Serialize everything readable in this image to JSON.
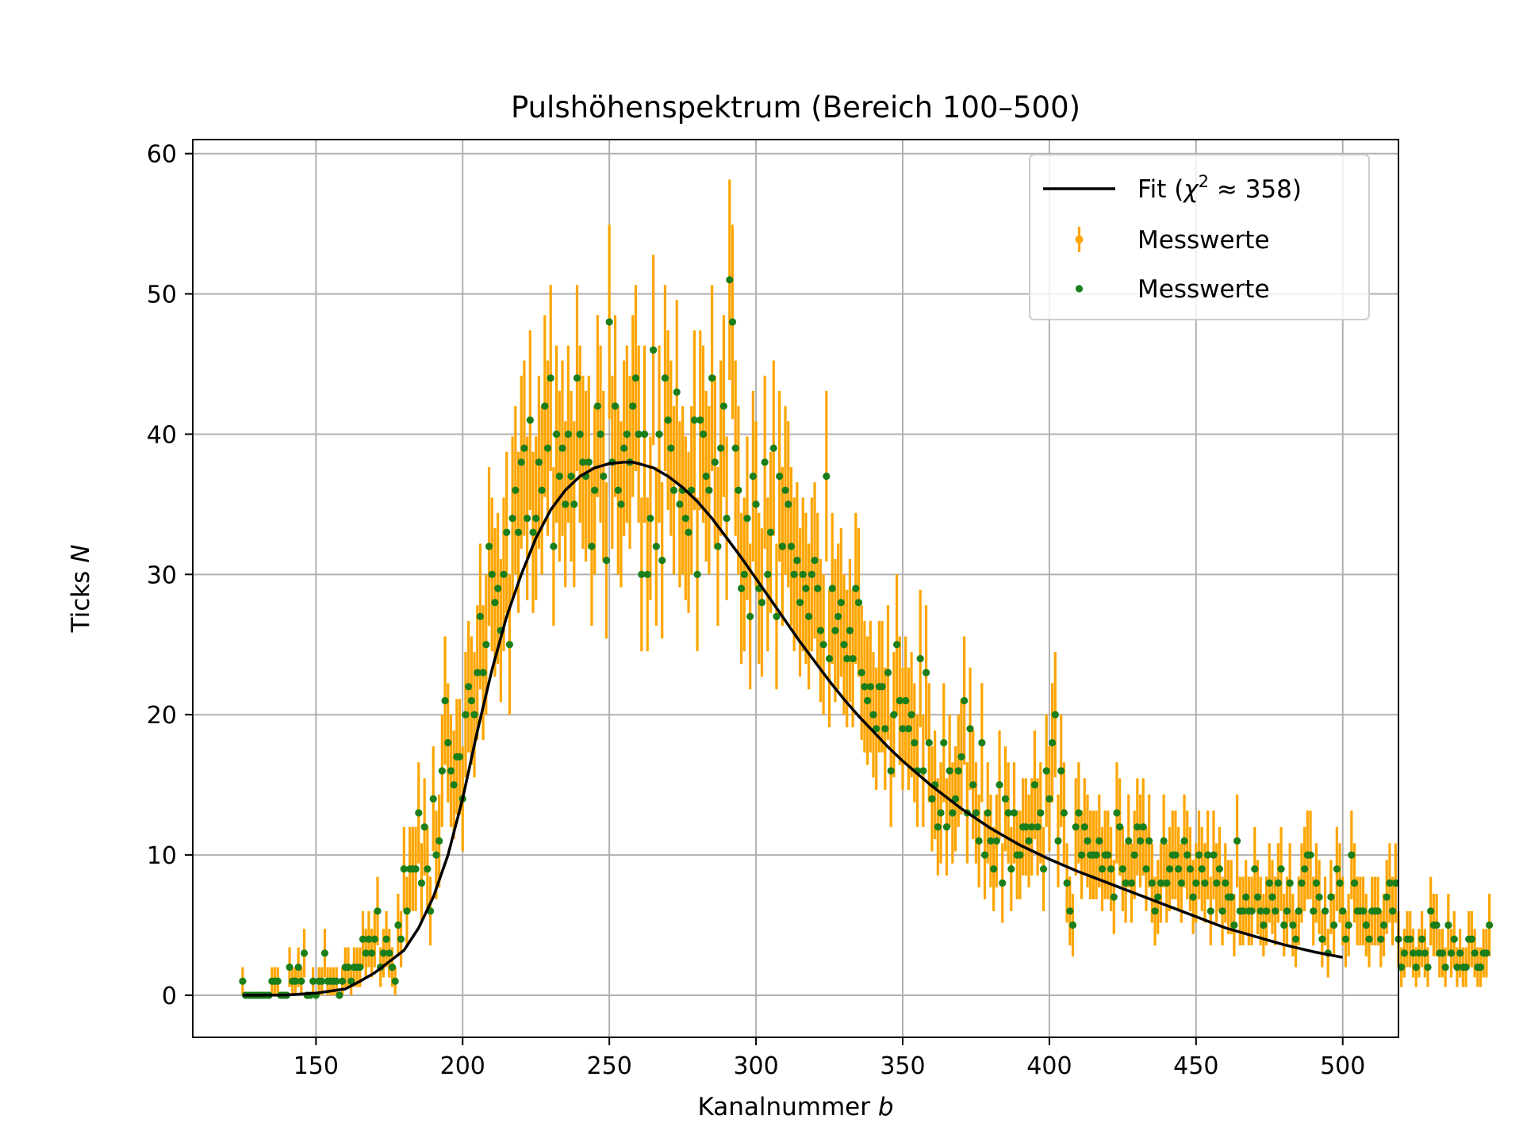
{
  "chart_data": {
    "type": "scatter",
    "title": "Pulshöhenspektrum (Bereich 100–500)",
    "xlabel": "Kanalnummer b",
    "ylabel": "Ticks N",
    "xlabel_parts": {
      "text": "Kanalnummer ",
      "var": "b"
    },
    "ylabel_parts": {
      "text": "Ticks ",
      "var": "N"
    },
    "xlim": [
      108,
      519
    ],
    "ylim": [
      -3,
      61
    ],
    "x_ticks": [
      150,
      200,
      250,
      300,
      350,
      400,
      450,
      500
    ],
    "y_ticks": [
      0,
      10,
      20,
      30,
      40,
      50,
      60
    ],
    "grid": true,
    "legend_position": "top-right",
    "colors": {
      "fit": "#000000",
      "errorbar": "#ffa500",
      "points": "#1a7f1a",
      "grid": "#b0b0b0"
    },
    "legend": [
      {
        "kind": "line",
        "label_pre": "Fit (",
        "label_chi": "χ",
        "label_sup": "2",
        "label_post": " ≈ 358)"
      },
      {
        "kind": "errorbar",
        "label": "Messwerte"
      },
      {
        "kind": "point",
        "label": "Messwerte"
      }
    ],
    "series": [
      {
        "name": "Messwerte",
        "x_start": 125,
        "x_step": 1,
        "y": [
          1,
          0,
          0,
          0,
          0,
          0,
          0,
          0,
          0,
          0,
          1,
          1,
          1,
          0,
          0,
          0,
          2,
          1,
          1,
          2,
          1,
          3,
          0,
          0,
          1,
          0,
          1,
          1,
          3,
          1,
          1,
          1,
          1,
          0,
          1,
          2,
          2,
          1,
          2,
          2,
          2,
          4,
          3,
          4,
          3,
          4,
          6,
          2,
          3,
          4,
          3,
          2,
          1,
          5,
          4,
          9,
          6,
          9,
          9,
          9,
          13,
          8,
          12,
          9,
          6,
          14,
          10,
          11,
          16,
          21,
          18,
          16,
          15,
          17,
          17,
          14,
          20,
          22,
          21,
          20,
          23,
          27,
          23,
          25,
          32,
          30,
          28,
          29,
          26,
          30,
          33,
          25,
          34,
          36,
          33,
          38,
          39,
          34,
          41,
          33,
          34,
          38,
          36,
          42,
          39,
          44,
          32,
          40,
          37,
          39,
          35,
          40,
          37,
          35,
          44,
          40,
          38,
          37,
          38,
          32,
          36,
          42,
          40,
          37,
          31,
          48,
          38,
          42,
          36,
          35,
          39,
          40,
          38,
          42,
          44,
          40,
          30,
          40,
          30,
          34,
          46,
          32,
          40,
          31,
          44,
          41,
          39,
          36,
          43,
          35,
          36,
          34,
          33,
          36,
          41,
          30,
          41,
          40,
          37,
          36,
          44,
          38,
          32,
          39,
          42,
          34,
          51,
          48,
          39,
          36,
          29,
          30,
          34,
          27,
          37,
          35,
          29,
          28,
          38,
          30,
          33,
          39,
          27,
          37,
          32,
          36,
          35,
          32,
          30,
          31,
          28,
          30,
          29,
          27,
          30,
          31,
          29,
          26,
          25,
          37,
          24,
          29,
          26,
          27,
          28,
          25,
          24,
          26,
          24,
          29,
          28,
          23,
          22,
          21,
          22,
          20,
          19,
          22,
          22,
          19,
          23,
          16,
          20,
          25,
          21,
          19,
          21,
          19,
          20,
          18,
          16,
          24,
          16,
          23,
          18,
          14,
          15,
          12,
          13,
          18,
          12,
          16,
          13,
          14,
          16,
          17,
          21,
          13,
          19,
          15,
          13,
          11,
          18,
          10,
          13,
          11,
          9,
          11,
          15,
          8,
          14,
          13,
          9,
          13,
          10,
          10,
          12,
          12,
          11,
          12,
          15,
          12,
          13,
          9,
          16,
          14,
          18,
          20,
          11,
          16,
          13,
          8,
          6,
          5,
          12,
          13,
          10,
          12,
          11,
          10,
          10,
          10,
          11,
          9,
          10,
          10,
          9,
          7,
          13,
          12,
          9,
          8,
          11,
          8,
          10,
          12,
          11,
          12,
          9,
          11,
          8,
          6,
          7,
          8,
          11,
          8,
          9,
          10,
          10,
          9,
          8,
          11,
          10,
          9,
          7,
          8,
          10,
          9,
          8,
          10,
          6,
          10,
          8,
          9,
          6,
          8,
          7,
          7,
          5,
          11,
          6,
          6,
          7,
          6,
          6,
          9,
          7,
          6,
          5,
          6,
          8,
          7,
          6,
          8,
          9,
          5,
          6,
          8,
          5,
          4,
          6,
          8,
          9,
          10,
          10,
          6,
          8,
          7,
          4,
          6,
          3,
          7,
          5,
          9,
          8,
          6,
          4,
          5,
          10,
          8,
          6,
          6,
          6,
          5,
          4,
          6,
          6,
          6,
          4,
          5,
          7,
          8,
          6,
          8,
          4,
          2,
          3,
          4,
          4,
          3,
          2,
          3,
          4,
          3,
          2,
          6,
          5,
          5,
          3,
          3,
          2,
          5,
          3,
          4,
          2,
          3,
          2,
          2,
          4,
          4,
          3,
          2,
          2,
          3,
          3,
          5
        ]
      }
    ],
    "fit_curve": {
      "name": "Fit",
      "x": [
        125,
        130,
        140,
        150,
        160,
        165,
        170,
        175,
        180,
        185,
        190,
        195,
        200,
        205,
        210,
        215,
        220,
        225,
        230,
        235,
        240,
        245,
        250,
        255,
        258,
        260,
        265,
        270,
        275,
        280,
        285,
        290,
        295,
        300,
        305,
        310,
        315,
        320,
        325,
        330,
        335,
        340,
        345,
        350,
        355,
        360,
        365,
        370,
        375,
        380,
        385,
        390,
        395,
        400,
        410,
        420,
        430,
        440,
        450,
        460,
        470,
        480,
        490,
        500
      ],
      "y": [
        0,
        0,
        0.02,
        0.15,
        0.45,
        1.0,
        1.6,
        2.4,
        3.2,
        4.8,
        7.0,
        10.0,
        14.0,
        18.8,
        23.2,
        27.0,
        30.0,
        32.6,
        34.6,
        36.0,
        37.0,
        37.6,
        37.9,
        38.0,
        38.0,
        37.9,
        37.6,
        37.0,
        36.2,
        35.2,
        34.0,
        32.6,
        31.2,
        29.7,
        28.2,
        26.7,
        25.2,
        23.8,
        22.4,
        21.1,
        19.9,
        18.8,
        17.7,
        16.7,
        15.8,
        14.9,
        14.1,
        13.3,
        12.6,
        11.9,
        11.3,
        10.7,
        10.2,
        9.7,
        8.8,
        8.0,
        7.2,
        6.4,
        5.6,
        4.8,
        4.2,
        3.6,
        3.1,
        2.7
      ]
    }
  }
}
